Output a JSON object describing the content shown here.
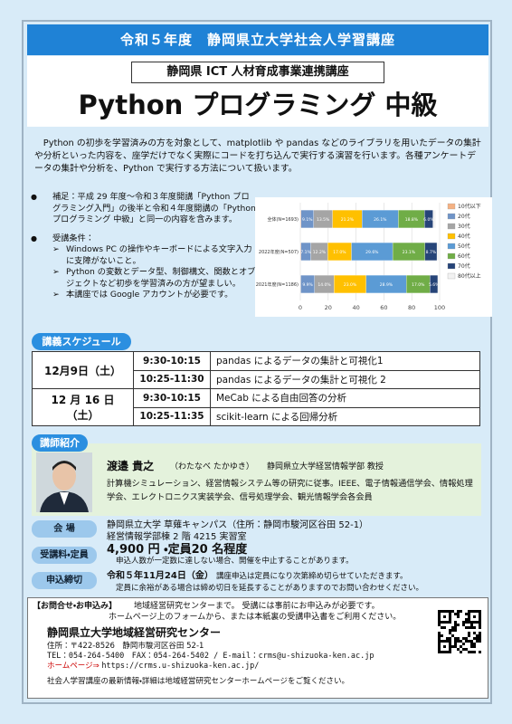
{
  "header": {
    "banner": "令和５年度　静岡県立大学社会人学習講座",
    "subtitle": "静岡県 ICT 人材育成事業連携講座",
    "title": "Python プログラミング 中級"
  },
  "intro": "Python の初歩を学習済みの方を対象として、matplotlib や pandas などのライブラリを用いたデータの集計や分析といった内容を、座学だけでなく実際にコードを打ち込んで実行する演習を行います。各種アンケートデータの集計や分析を、Python で実行する方法について扱います。",
  "notes": [
    {
      "text": "補足：平成 29 年度～令和３年度開講「Python プログラミング入門」の後半と令和４年度開講の「Python プログラミング 中級」と同一の内容を含みます。"
    },
    {
      "text": "受講条件：",
      "items": [
        "Windows PC の操作やキーボードによる文字入力に支障がないこと。",
        "Python の変数とデータ型、制御構文、関数とオブジェクトなど初歩を学習済みの方が望ましい。",
        "本講座では Google アカウントが必要です。"
      ]
    }
  ],
  "chart_data": {
    "type": "bar",
    "orientation": "horizontal",
    "stacked": true,
    "categories": [
      "全体(N=1693)",
      "2022年度(N=507)",
      "2021年度(N=1186)"
    ],
    "series": [
      {
        "name": "10代以下",
        "color": "#f4b183",
        "values": [
          0.5,
          0.4,
          0.3
        ]
      },
      {
        "name": "20代",
        "color": "#6f94c8",
        "values": [
          9.1,
          7.1,
          9.9
        ],
        "value_labels": [
          "9.1%",
          "7.1%",
          "9.9%"
        ]
      },
      {
        "name": "30代",
        "color": "#a5a5a5",
        "values": [
          13.5,
          12.2,
          14.0
        ],
        "value_labels": [
          "13.5%",
          "12.2%",
          "14.0%"
        ]
      },
      {
        "name": "40代",
        "color": "#ffc000",
        "values": [
          21.2,
          17.0,
          23.0
        ],
        "value_labels": [
          "21.2%",
          "17.0%",
          "23.0%"
        ]
      },
      {
        "name": "50代",
        "color": "#5b9bd5",
        "values": [
          26.1,
          29.6,
          28.9
        ],
        "value_labels": [
          "26.1%",
          "29.6%",
          "28.9%"
        ]
      },
      {
        "name": "60代",
        "color": "#70ad47",
        "values": [
          18.8,
          23.1,
          17.0
        ],
        "value_labels": [
          "18.8%",
          "23.1%",
          "17.0%"
        ]
      },
      {
        "name": "70代",
        "color": "#264478",
        "values": [
          6.0,
          8.7,
          5.6
        ],
        "value_labels": [
          "6.0%",
          "8.7%",
          "5.6%"
        ]
      },
      {
        "name": "80代以上",
        "color": "#f2f2f2",
        "values": [
          2.0,
          1.8,
          1.2
        ]
      }
    ],
    "xlim": [
      0,
      100
    ],
    "xticks": [
      0,
      20,
      40,
      60,
      80,
      100
    ],
    "grid": true,
    "legend": "right"
  },
  "schedule": {
    "label": "講義スケジュール",
    "days": [
      {
        "date": "12月9日（土）",
        "sessions": [
          [
            "9:30-10:15",
            "pandas によるデータの集計と可視化1"
          ],
          [
            "10:25-11:30",
            "pandas によるデータの集計と可視化 2"
          ]
        ]
      },
      {
        "date": "12 月 16 日（土）",
        "sessions": [
          [
            "9:30-10:15",
            "MeCab による自由回答の分析"
          ],
          [
            "10:25-11:35",
            "scikit-learn による回帰分析"
          ]
        ]
      }
    ]
  },
  "instructor": {
    "label": "講師紹介",
    "name": "渡邉 貴之",
    "reading": "（わたなべ たかゆき）",
    "affiliation": "静岡県立大学経営情報学部 教授",
    "bio": "計算機シミュレーション、経営情報システム等の研究に従事。IEEE、電子情報通信学会、情報処理学会、エレクトロニクス実装学会、信号処理学会、観光情報学会各会員"
  },
  "details": [
    {
      "label": "会 場",
      "lines": [
        "静岡県立大学 草薙キャンパス（住所：静岡市駿河区谷田 52-1）",
        "経営情報学部棟 2 階 4215 実習室"
      ]
    },
    {
      "label": "受講料・定員",
      "lines": [
        "4,900 円 ・定員20 名程度",
        "申込人数が一定数に達しない場合、開催を中止することがあります。"
      ]
    },
    {
      "label": "申込締切",
      "lines": [
        "令和５年11月24日（金）",
        "講座申込は定員になり次第締め切らせていただきます。",
        "定員に余裕がある場合は締め切日を延長することがありますのでお問い合わせください。"
      ]
    }
  ],
  "contact": {
    "heading": "【お問合せ・お申込み】",
    "text": "地域経営研究センターまで。 受講には事前にお申込みが必要です。",
    "text2": "ホームページ上のフォームから、または本紙裏の受講申込書をご利用ください。",
    "org": "静岡県立大学地域経営研究センター",
    "address": "住所：〒422-8526　静岡市駿河区谷田 52-1",
    "phone": "TEL：054-264-5400　FAX：054-264-5402 / E-mail：crms@u-shizuoka-ken.ac.jp",
    "web_label": "ホームページ⇒",
    "url": "https://crms.u-shizuoka-ken.ac.jp/",
    "footer": "社会人学習講座の最新情報・詳細は地域経営研究センターホームページをご覧ください。"
  }
}
